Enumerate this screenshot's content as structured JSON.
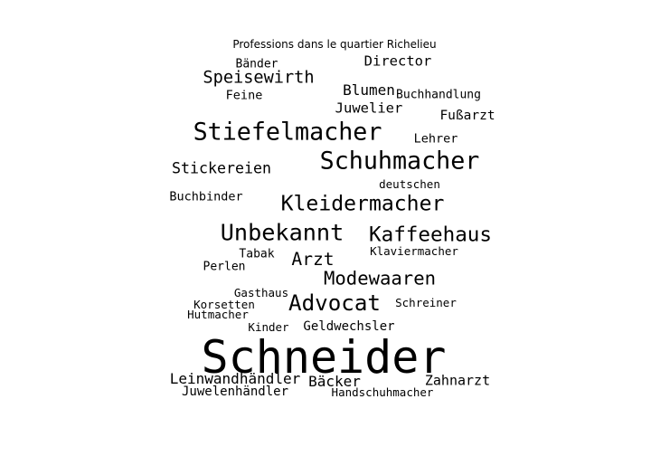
{
  "chart_data": {
    "type": "wordcloud",
    "title": "Professions dans le quartier Richelieu",
    "text_color": "#000000",
    "background": "#ffffff",
    "words": [
      {
        "text": "Schneider",
        "weight": 100
      },
      {
        "text": "Schuhmacher",
        "weight": 54
      },
      {
        "text": "Stiefelmacher",
        "weight": 54
      },
      {
        "text": "Kleidermacher",
        "weight": 47
      },
      {
        "text": "Unbekannt",
        "weight": 51
      },
      {
        "text": "Kaffeehaus",
        "weight": 46
      },
      {
        "text": "Advocat",
        "weight": 49
      },
      {
        "text": "Modewaaren",
        "weight": 42
      },
      {
        "text": "Arzt",
        "weight": 40
      },
      {
        "text": "Speisewirth",
        "weight": 38
      },
      {
        "text": "Stickereien",
        "weight": 34
      },
      {
        "text": "Blumen",
        "weight": 33
      },
      {
        "text": "Juwelier",
        "weight": 32
      },
      {
        "text": "Director",
        "weight": 32
      },
      {
        "text": "Leinwandhändler",
        "weight": 33
      },
      {
        "text": "Bäcker",
        "weight": 33
      },
      {
        "text": "Zahnarzt",
        "weight": 31
      },
      {
        "text": "Fußarzt",
        "weight": 30
      },
      {
        "text": "Geldwechsler",
        "weight": 29
      },
      {
        "text": "Juwelenhändler",
        "weight": 29
      },
      {
        "text": "Buchbinder",
        "weight": 28
      },
      {
        "text": "Feine",
        "weight": 28
      },
      {
        "text": "Lehrer",
        "weight": 28
      },
      {
        "text": "Buchhandlung",
        "weight": 27
      },
      {
        "text": "Bänder",
        "weight": 27
      },
      {
        "text": "Perlen",
        "weight": 27
      },
      {
        "text": "Tabak",
        "weight": 27
      },
      {
        "text": "Klaviermacher",
        "weight": 26
      },
      {
        "text": "Schreiner",
        "weight": 26
      },
      {
        "text": "Gasthaus",
        "weight": 26
      },
      {
        "text": "Korsetten",
        "weight": 26
      },
      {
        "text": "Hutmacher",
        "weight": 26
      },
      {
        "text": "Kinder",
        "weight": 26
      },
      {
        "text": "deutschen",
        "weight": 26
      },
      {
        "text": "Handschuhmacher",
        "weight": 26
      }
    ]
  }
}
